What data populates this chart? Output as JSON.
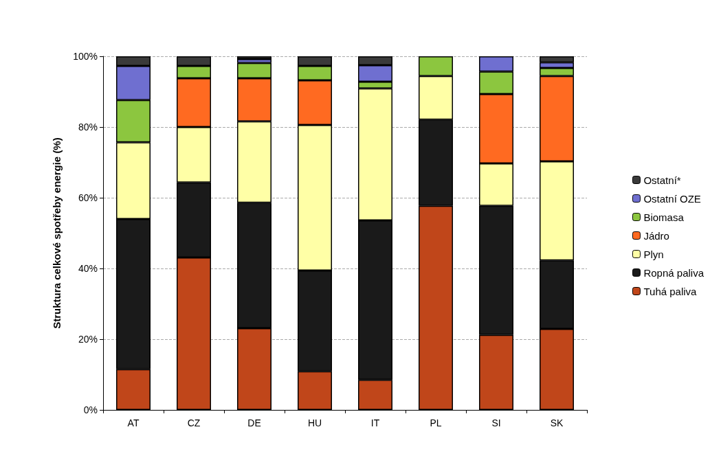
{
  "chart_data": {
    "type": "bar",
    "stacked": true,
    "ylabel": "Struktura celkové spotřeby energie (%)",
    "categories": [
      "AT",
      "CZ",
      "DE",
      "HU",
      "IT",
      "PL",
      "SI",
      "SK"
    ],
    "series": [
      {
        "name": "Tuhá paliva",
        "color": "#c0461a",
        "values": [
          11.5,
          43.1,
          23.1,
          10.9,
          8.5,
          57.7,
          21.2,
          22.9
        ]
      },
      {
        "name": "Ropná paliva",
        "color": "#1a1a1a",
        "values": [
          42.5,
          21.2,
          35.5,
          28.5,
          45.1,
          24.4,
          36.5,
          19.4
        ]
      },
      {
        "name": "Plyn",
        "color": "#ffffa6",
        "values": [
          21.7,
          15.7,
          23,
          41.2,
          37.3,
          12.3,
          12,
          28
        ]
      },
      {
        "name": "Jádro",
        "color": "#ff6a21",
        "values": [
          0,
          13.8,
          12.2,
          12.6,
          0,
          0,
          19.6,
          24.1
        ]
      },
      {
        "name": "Biomasa",
        "color": "#8cc63f",
        "values": [
          11.9,
          3.5,
          4.3,
          4.1,
          1.9,
          5.6,
          6.4,
          2.3
        ]
      },
      {
        "name": "Ostatní OZE",
        "color": "#6f6fd0",
        "values": [
          9.7,
          0,
          1.1,
          0,
          4.7,
          0,
          4.3,
          1.6
        ]
      },
      {
        "name": "Ostatní*",
        "color": "#3a3a3a",
        "values": [
          2.7,
          2.7,
          0.8,
          2.7,
          2.5,
          0,
          0,
          1.7
        ]
      }
    ],
    "ylim": [
      0,
      100
    ],
    "yticks": [
      {
        "value": 0,
        "label": "0%"
      },
      {
        "value": 20,
        "label": "20%"
      },
      {
        "value": 40,
        "label": "40%"
      },
      {
        "value": 60,
        "label": "60%"
      },
      {
        "value": 80,
        "label": "80%"
      },
      {
        "value": 100,
        "label": "100%"
      }
    ],
    "grid": "y",
    "legend": "right"
  }
}
